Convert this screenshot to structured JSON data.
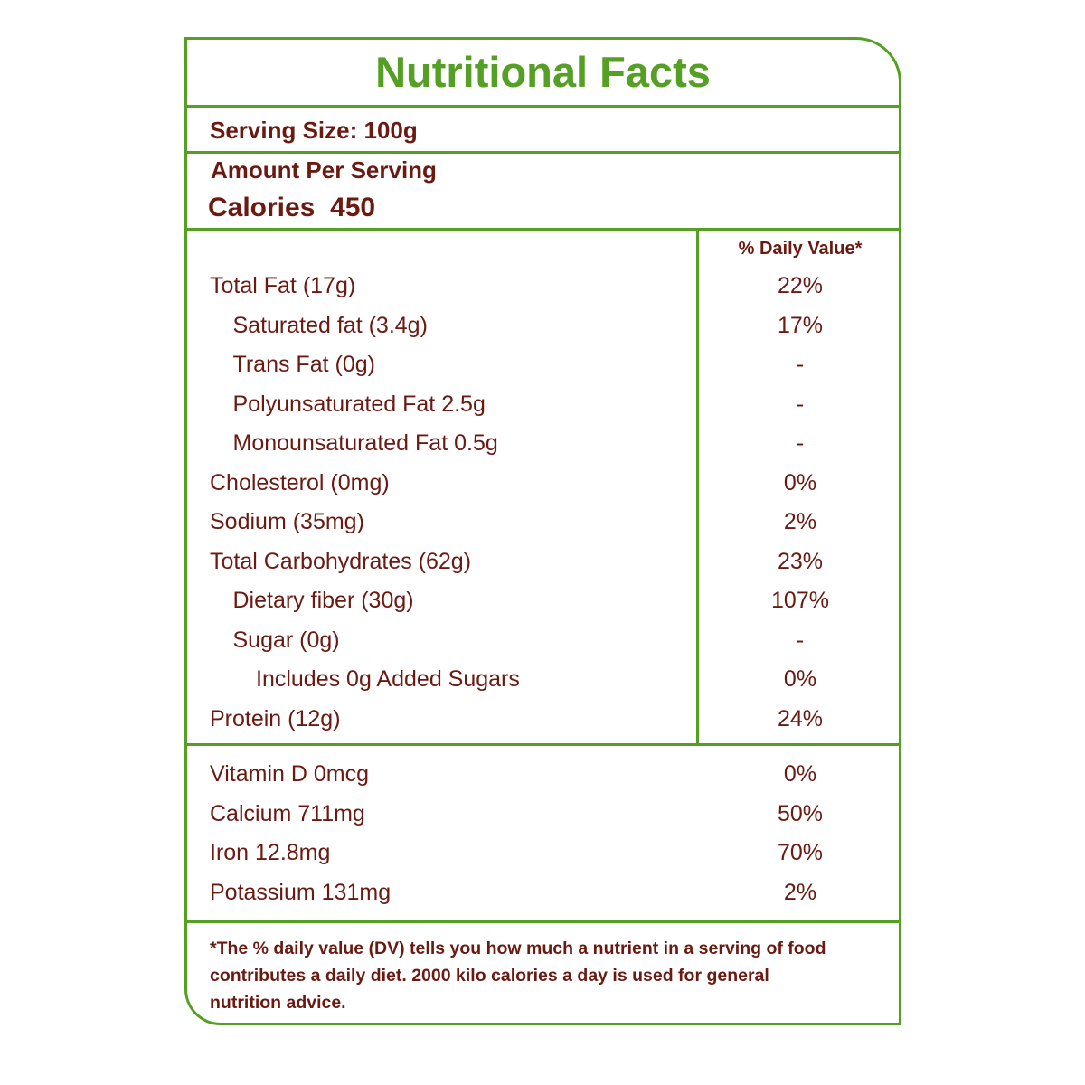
{
  "title": "Nutritional Facts",
  "serving_size": "Serving Size: 100g",
  "amount_per_serving": "Amount Per Serving",
  "calories_label": "Calories",
  "calories_value": "450",
  "daily_value_header": "% Daily Value*",
  "nutrients": [
    {
      "name": "Total Fat (17g)",
      "dv": "22%",
      "indent": 0
    },
    {
      "name": "Saturated fat (3.4g)",
      "dv": "17%",
      "indent": 1
    },
    {
      "name": "Trans Fat (0g)",
      "dv": "-",
      "indent": 1
    },
    {
      "name": "Polyunsaturated Fat 2.5g",
      "dv": "-",
      "indent": 1
    },
    {
      "name": "Monounsaturated Fat 0.5g",
      "dv": "-",
      "indent": 1
    },
    {
      "name": "Cholesterol (0mg)",
      "dv": "0%",
      "indent": 0
    },
    {
      "name": "Sodium (35mg)",
      "dv": "2%",
      "indent": 0
    },
    {
      "name": "Total Carbohydrates  (62g)",
      "dv": "23%",
      "indent": 0
    },
    {
      "name": "Dietary fiber (30g)",
      "dv": "107%",
      "indent": 1
    },
    {
      "name": "Sugar (0g)",
      "dv": "-",
      "indent": 1
    },
    {
      "name": "Includes 0g Added Sugars",
      "dv": "0%",
      "indent": 2
    },
    {
      "name": "Protein (12g)",
      "dv": "24%",
      "indent": 0
    }
  ],
  "vitamins": [
    {
      "name": "Vitamin D 0mcg",
      "dv": "0%"
    },
    {
      "name": "Calcium 711mg",
      "dv": "50%"
    },
    {
      "name": "Iron 12.8mg",
      "dv": "70%"
    },
    {
      "name": "Potassium  131mg",
      "dv": "2%"
    }
  ],
  "footnote": "*The % daily value (DV) tells you how much a nutrient in a serving of food contributes a daily diet. 2000 kilo calories a day is used for general nutrition advice.",
  "colors": {
    "border": "#55a024",
    "title": "#55a024",
    "text": "#6b1a12"
  }
}
